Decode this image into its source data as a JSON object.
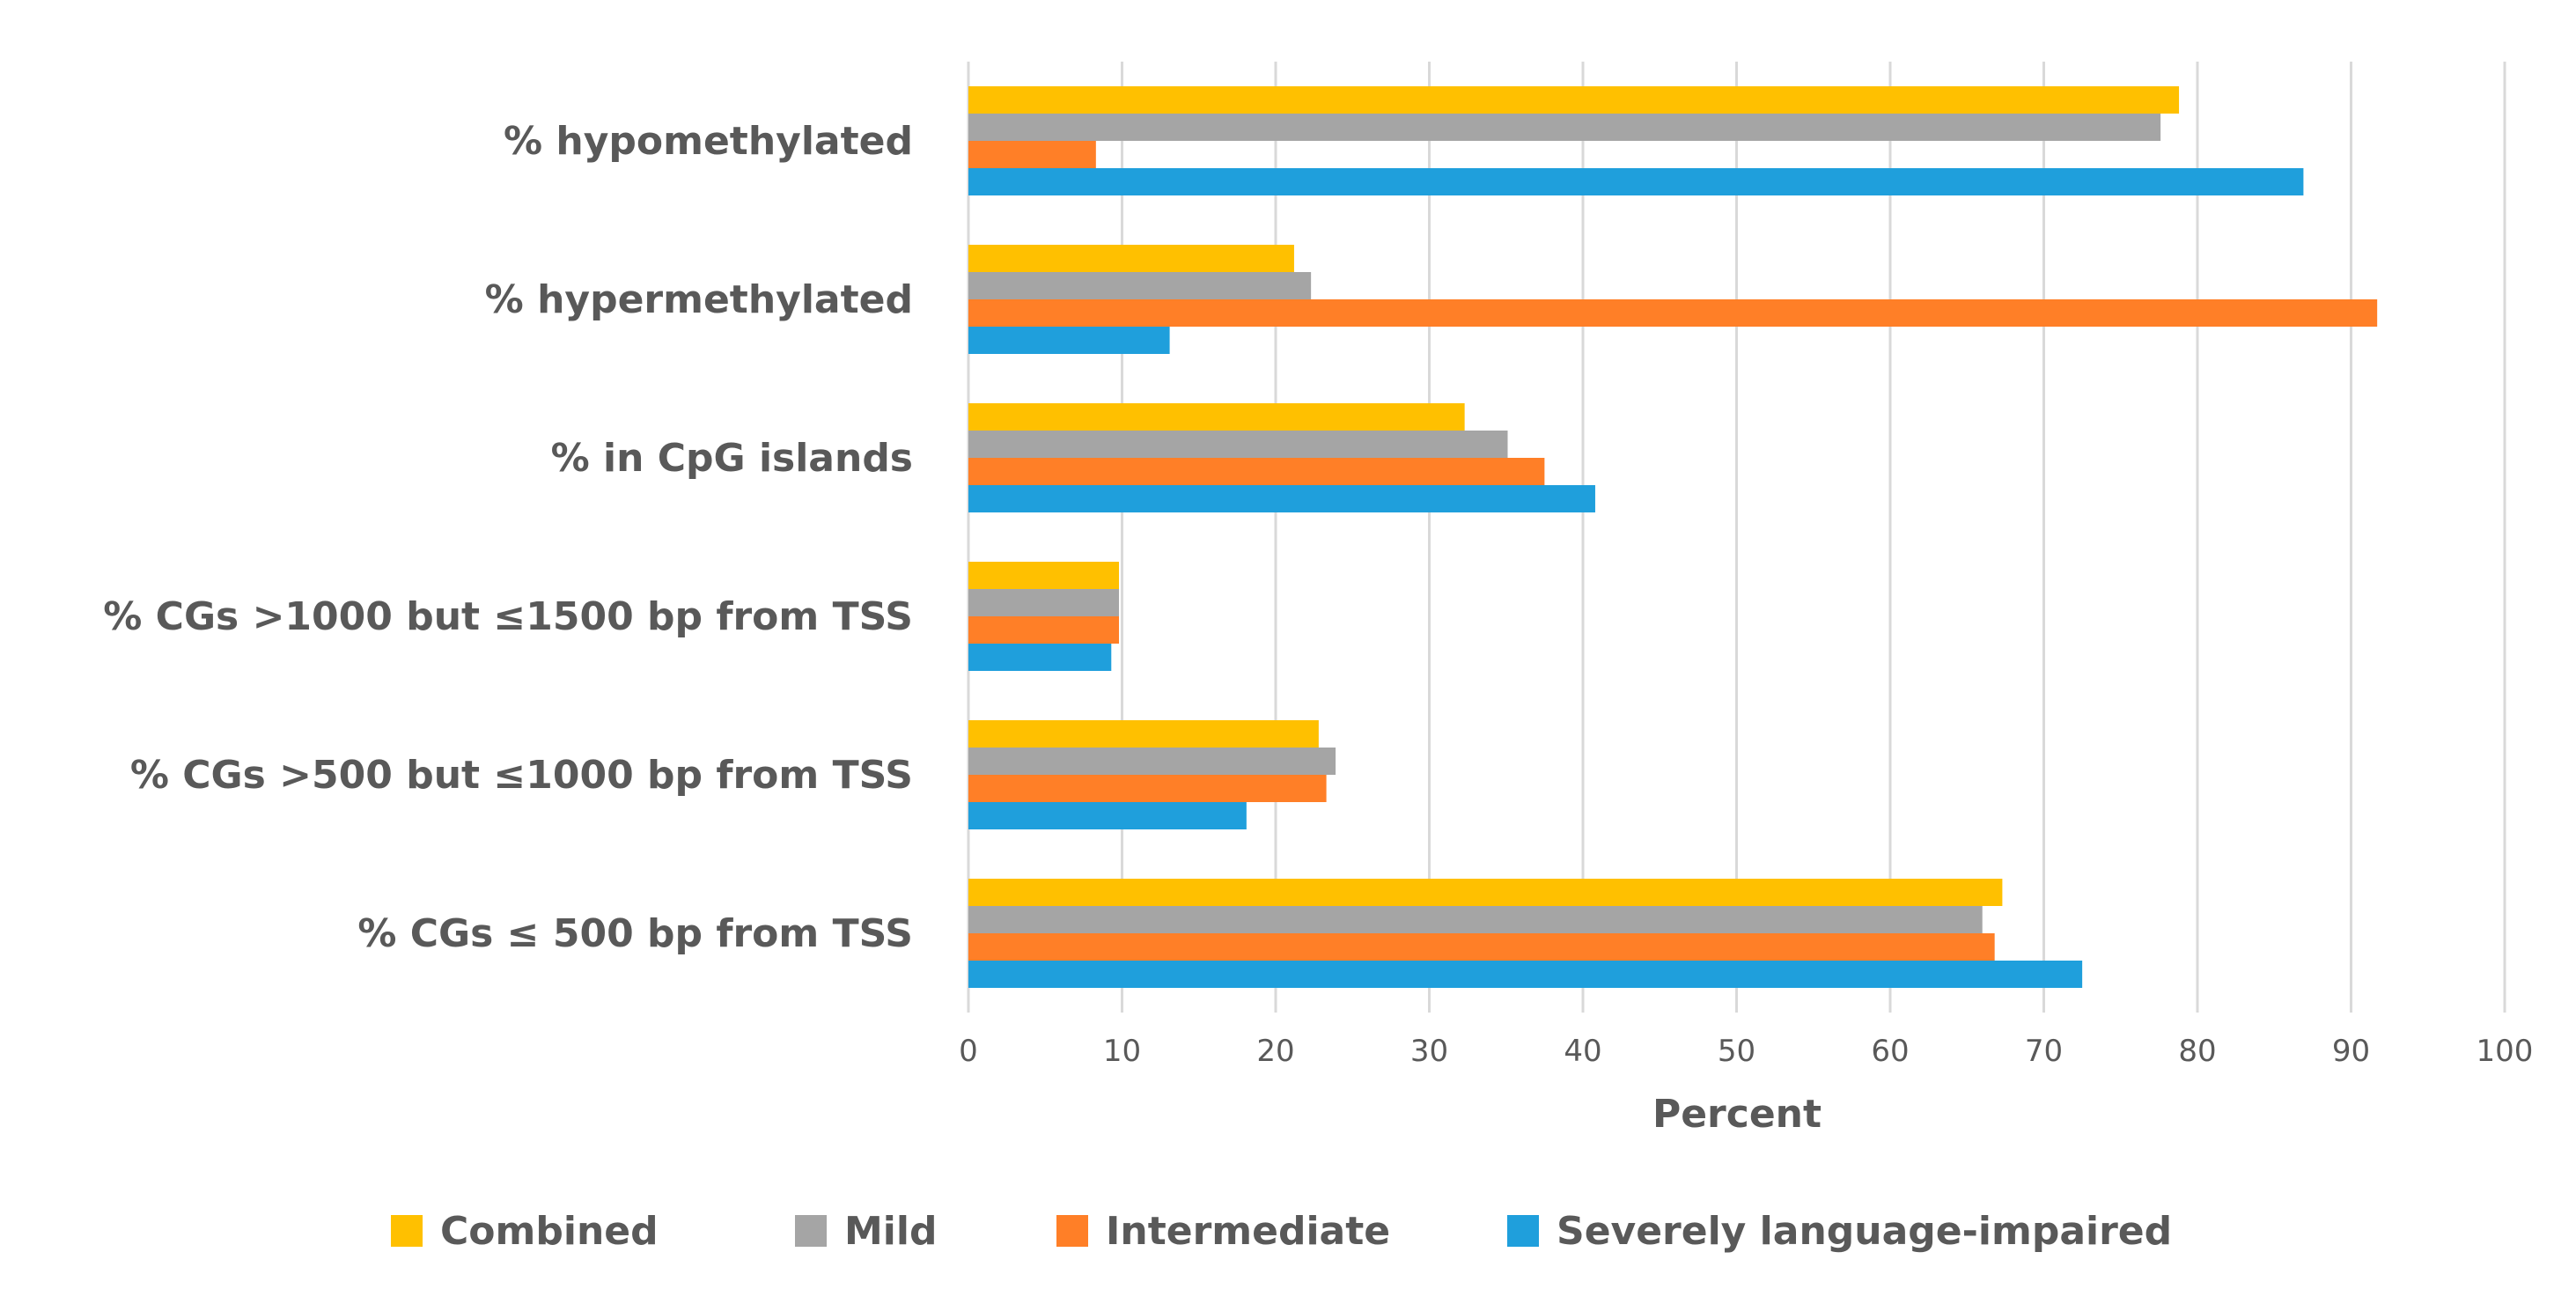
{
  "chart_data": {
    "type": "bar",
    "orientation": "horizontal",
    "title": "",
    "xlabel": "Percent",
    "ylabel": "",
    "xlim": [
      0,
      100
    ],
    "x_ticks": [
      0,
      10,
      20,
      30,
      40,
      50,
      60,
      70,
      80,
      90,
      100
    ],
    "grid": true,
    "legend_position": "bottom",
    "categories": [
      "% hypomethylated",
      "% hypermethylated",
      "% in CpG islands",
      "% CGs >1000 but ≤1500 bp  from TSS",
      "% CGs >500 but ≤1000 bp  from TSS",
      "% CGs ≤ 500 bp from TSS"
    ],
    "series": [
      {
        "name": "Combined",
        "color": "#FFC000",
        "values": [
          78.8,
          21.2,
          32.3,
          9.8,
          22.8,
          67.3
        ]
      },
      {
        "name": "Mild",
        "color": "#A5A5A5",
        "values": [
          77.6,
          22.3,
          35.1,
          9.8,
          23.9,
          66.0
        ]
      },
      {
        "name": "Intermediate",
        "color": "#FF7F27",
        "values": [
          8.3,
          91.7,
          37.5,
          9.8,
          23.3,
          66.8
        ]
      },
      {
        "name": "Severely language-impaired",
        "color": "#1F9FDC",
        "values": [
          86.9,
          13.1,
          40.8,
          9.3,
          18.1,
          72.5
        ]
      }
    ]
  }
}
